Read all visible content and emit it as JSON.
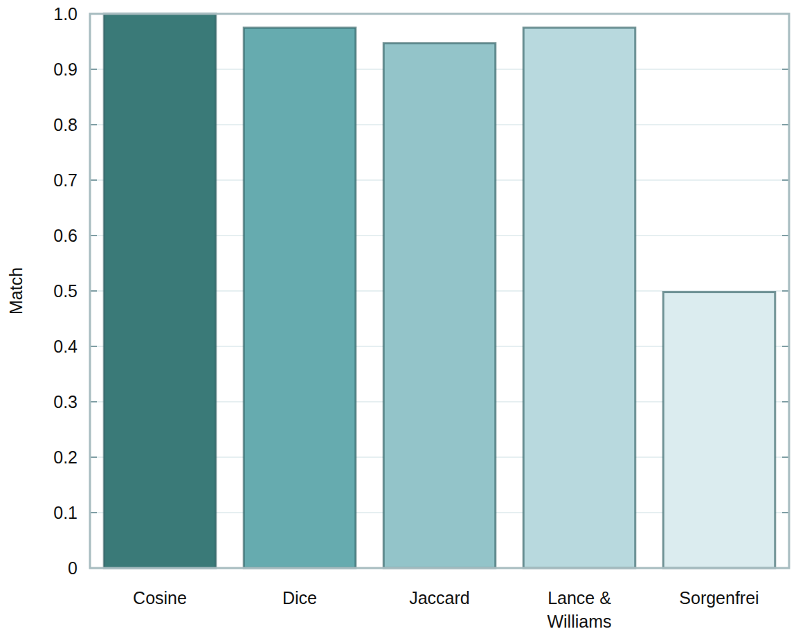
{
  "chart_data": {
    "type": "bar",
    "ylabel": "Match",
    "categories": [
      "Cosine",
      "Dice",
      "Jaccard",
      "Lance & Williams",
      "Sorgenfrei"
    ],
    "values": [
      1.0,
      0.975,
      0.947,
      0.975,
      0.498
    ],
    "colors": [
      "#3a7a78",
      "#66abaf",
      "#93c4c9",
      "#b8d9de",
      "#dbecef"
    ],
    "ylim": [
      0,
      1
    ],
    "yticks": [
      0,
      0.1,
      0.2,
      0.3,
      0.4,
      0.5,
      0.6,
      0.7,
      0.8,
      0.9,
      {
        "value": 1,
        "label": "1.0"
      }
    ],
    "grid": true
  }
}
